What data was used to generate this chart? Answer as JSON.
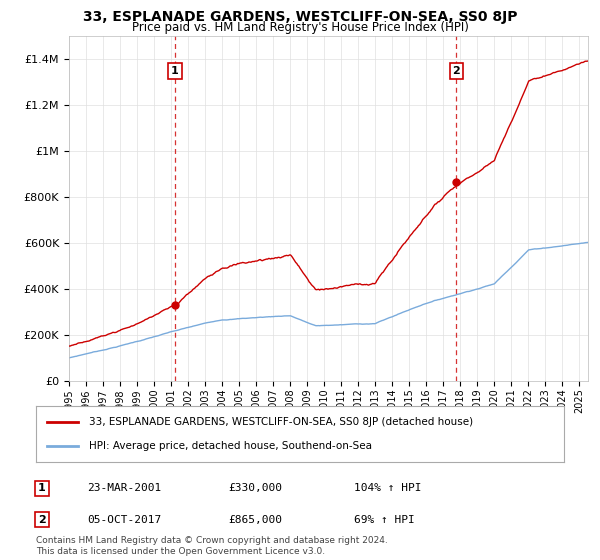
{
  "title": "33, ESPLANADE GARDENS, WESTCLIFF-ON-SEA, SS0 8JP",
  "subtitle": "Price paid vs. HM Land Registry's House Price Index (HPI)",
  "legend_line1": "33, ESPLANADE GARDENS, WESTCLIFF-ON-SEA, SS0 8JP (detached house)",
  "legend_line2": "HPI: Average price, detached house, Southend-on-Sea",
  "annotation1_label": "1",
  "annotation1_date": "23-MAR-2001",
  "annotation1_price": "£330,000",
  "annotation1_hpi": "104% ↑ HPI",
  "annotation1_year": 2001.23,
  "annotation1_value": 330000,
  "annotation2_label": "2",
  "annotation2_date": "05-OCT-2017",
  "annotation2_price": "£865,000",
  "annotation2_hpi": "69% ↑ HPI",
  "annotation2_year": 2017.77,
  "annotation2_value": 865000,
  "ylim": [
    0,
    1500000
  ],
  "yticks": [
    0,
    200000,
    400000,
    600000,
    800000,
    1000000,
    1200000,
    1400000
  ],
  "ytick_labels": [
    "£0",
    "£200K",
    "£400K",
    "£600K",
    "£800K",
    "£1M",
    "£1.2M",
    "£1.4M"
  ],
  "xmin": 1995,
  "xmax": 2025.5,
  "red_line_color": "#cc0000",
  "blue_line_color": "#7aabdc",
  "vline_color": "#cc0000",
  "grid_color": "#e0e0e0",
  "background_color": "#ffffff",
  "footer_text": "Contains HM Land Registry data © Crown copyright and database right 2024.\nThis data is licensed under the Open Government Licence v3.0."
}
